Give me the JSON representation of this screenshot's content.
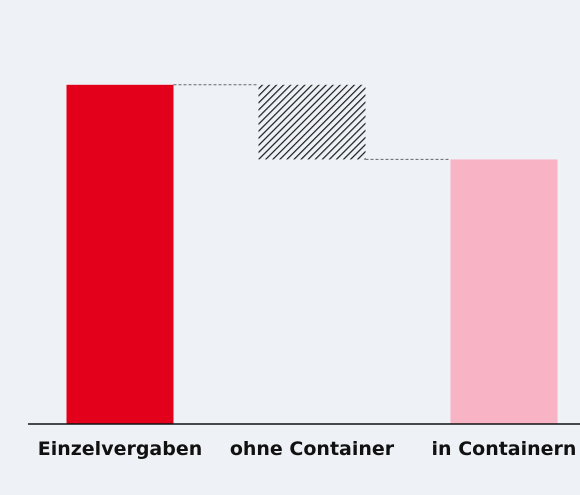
{
  "chart_data": {
    "type": "waterfall",
    "categories": [
      "Einzelvergaben",
      "ohne Container",
      "in Containern"
    ],
    "values": [
      100,
      -22,
      78
    ],
    "kinds": [
      "total",
      "delta",
      "total"
    ],
    "total_color": "#e3001b",
    "decrease_color": "#1a1a1a",
    "end_color": "#f8b3c5",
    "ylim": [
      0,
      125
    ]
  }
}
